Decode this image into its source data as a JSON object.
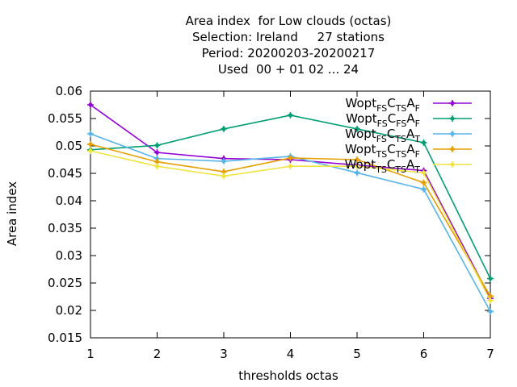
{
  "chart_data": {
    "type": "line",
    "title_lines": [
      "Area index  for Low clouds (octas)",
      "Selection: Ireland     27 stations",
      "Period: 20200203-20200217",
      "Used  00 + 01 02 ... 24"
    ],
    "xlabel": "thresholds octas",
    "ylabel": "Area index",
    "x": [
      1,
      2,
      3,
      4,
      5,
      6,
      7
    ],
    "xlim": [
      1,
      7
    ],
    "ylim": [
      0.015,
      0.06
    ],
    "yticks": [
      "0.015",
      "0.02",
      "0.025",
      "0.03",
      "0.035",
      "0.04",
      "0.045",
      "0.05",
      "0.055",
      "0.06"
    ],
    "xticks": [
      "1",
      "2",
      "3",
      "4",
      "5",
      "6",
      "7"
    ],
    "grid": false,
    "legend_position": "top-right",
    "series": [
      {
        "name_parts": [
          "Wopt",
          "FS",
          "C",
          "TS",
          "A",
          "F"
        ],
        "color": "#9400d3",
        "values": [
          0.0575,
          0.0488,
          0.0477,
          0.0475,
          0.0465,
          0.0455,
          0.0222
        ]
      },
      {
        "name_parts": [
          "Wopt",
          "FS",
          "C",
          "FS",
          "A",
          "F"
        ],
        "color": "#009e73",
        "values": [
          0.0493,
          0.0501,
          0.0531,
          0.0556,
          0.0531,
          0.0506,
          0.0258
        ]
      },
      {
        "name_parts": [
          "Wopt",
          "FS",
          "C",
          "TS",
          "A",
          "T"
        ],
        "color": "#56b4e9",
        "values": [
          0.0522,
          0.0477,
          0.0472,
          0.0481,
          0.0451,
          0.0421,
          0.0198
        ]
      },
      {
        "name_parts": [
          "Wopt",
          "TS",
          "C",
          "TS",
          "A",
          "F"
        ],
        "color": "#e69f00",
        "values": [
          0.0503,
          0.0471,
          0.0453,
          0.0478,
          0.0475,
          0.0433,
          0.0226
        ]
      },
      {
        "name_parts": [
          "Wopt",
          "TS",
          "C",
          "TS",
          "A",
          "T"
        ],
        "color": "#f0e442",
        "values": [
          0.0491,
          0.0463,
          0.0445,
          0.0463,
          0.0463,
          0.0451,
          0.0218
        ]
      }
    ]
  }
}
